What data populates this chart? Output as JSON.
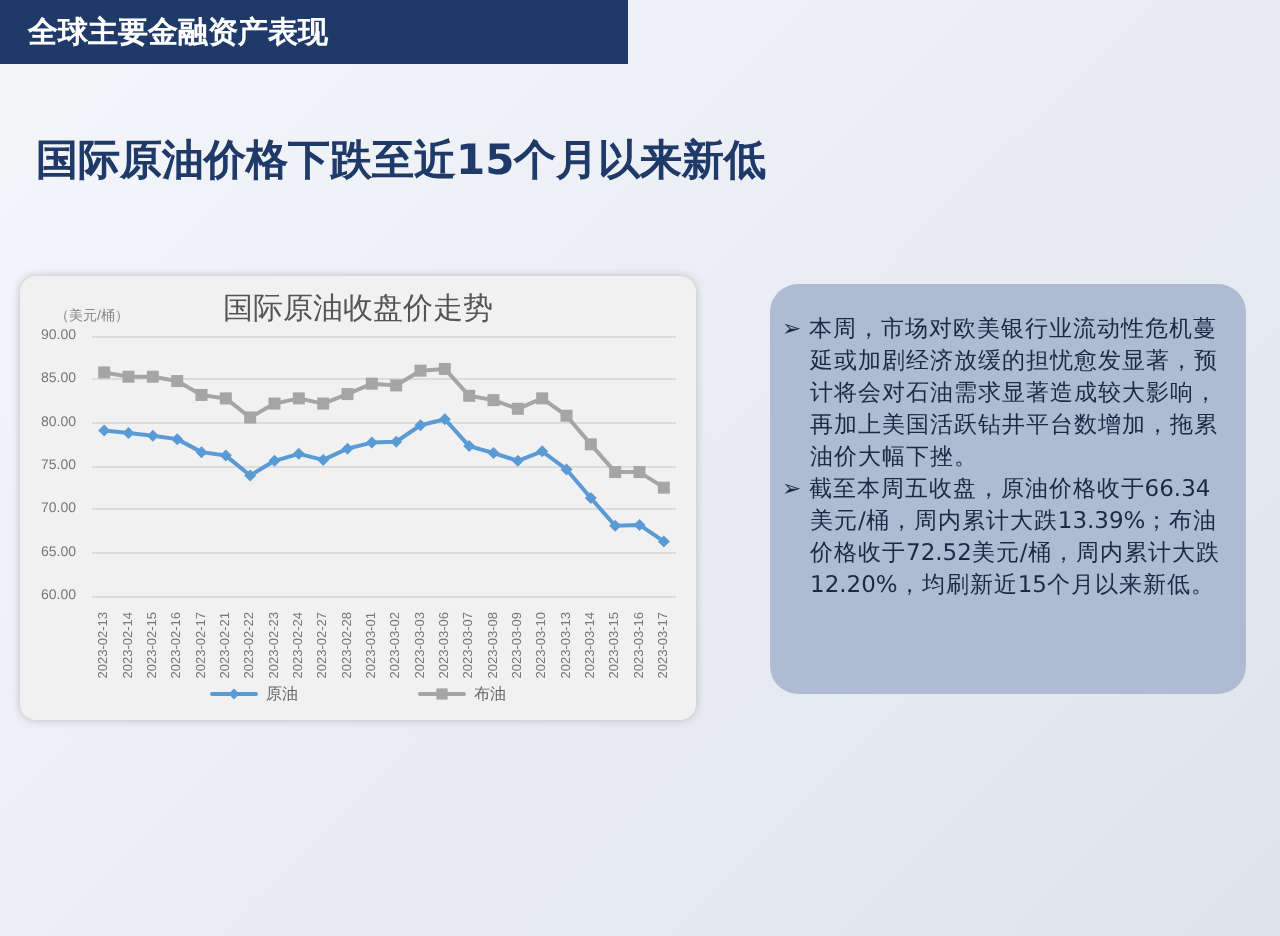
{
  "chart_data": {
    "type": "line",
    "title": "国际原油收盘价走势",
    "ylabel": "（美元/桶）",
    "annotations": [
      "全球主要金融资产表现",
      "国际原油价格下跌至近15个月以来新低",
      "➢ 本周，市场对欧美银行业流动性危机蔓延或加剧经济放缓的担忧愈发显著，预计将会对石油需求显著造成较大影响，再加上美国活跃钻井平台数增加，拖累油价大幅下挫。",
      "➢ 截至本周五收盘，原油价格收于66.34美元/桶，周内累计大跌13.39%；布油价格收于72.52美元/桶，周内累计大跌12.20%，均刷新近15个月以来新低。"
    ],
    "categories": [
      "2023-02-13",
      "2023-02-14",
      "2023-02-15",
      "2023-02-16",
      "2023-02-17",
      "2023-02-21",
      "2023-02-22",
      "2023-02-23",
      "2023-02-24",
      "2023-02-27",
      "2023-02-28",
      "2023-03-01",
      "2023-03-02",
      "2023-03-03",
      "2023-03-06",
      "2023-03-07",
      "2023-03-08",
      "2023-03-09",
      "2023-03-10",
      "2023-03-13",
      "2023-03-14",
      "2023-03-15",
      "2023-03-16",
      "2023-03-17"
    ],
    "series": [
      {
        "name": "原油",
        "color": "#5b9bd5",
        "marker": "diamond",
        "values": [
          79.1,
          78.8,
          78.5,
          78.1,
          76.6,
          76.2,
          73.9,
          75.6,
          76.4,
          75.7,
          77.0,
          77.7,
          77.8,
          79.7,
          80.4,
          77.3,
          76.5,
          75.6,
          76.7,
          74.6,
          71.3,
          68.1,
          68.2,
          66.3
        ]
      },
      {
        "name": "布油",
        "color": "#a5a5a5",
        "marker": "square",
        "values": [
          85.8,
          85.3,
          85.3,
          84.8,
          83.2,
          82.8,
          80.6,
          82.2,
          82.8,
          82.2,
          83.3,
          84.5,
          84.3,
          86.0,
          86.2,
          83.1,
          82.6,
          81.6,
          82.8,
          80.8,
          77.5,
          74.3,
          74.3,
          72.5
        ]
      }
    ],
    "ylim": [
      60,
      90
    ],
    "yticks": [
      {
        "value": 60,
        "label": "60.00"
      },
      {
        "value": 65,
        "label": "65.00"
      },
      {
        "value": 70,
        "label": "70.00"
      },
      {
        "value": 75,
        "label": "75.00"
      },
      {
        "value": 80,
        "label": "80.00"
      },
      {
        "value": 85,
        "label": "85.00"
      },
      {
        "value": 90,
        "label": "90.00"
      }
    ],
    "grid": "y",
    "legend": "bottom",
    "line_style": "solid"
  }
}
